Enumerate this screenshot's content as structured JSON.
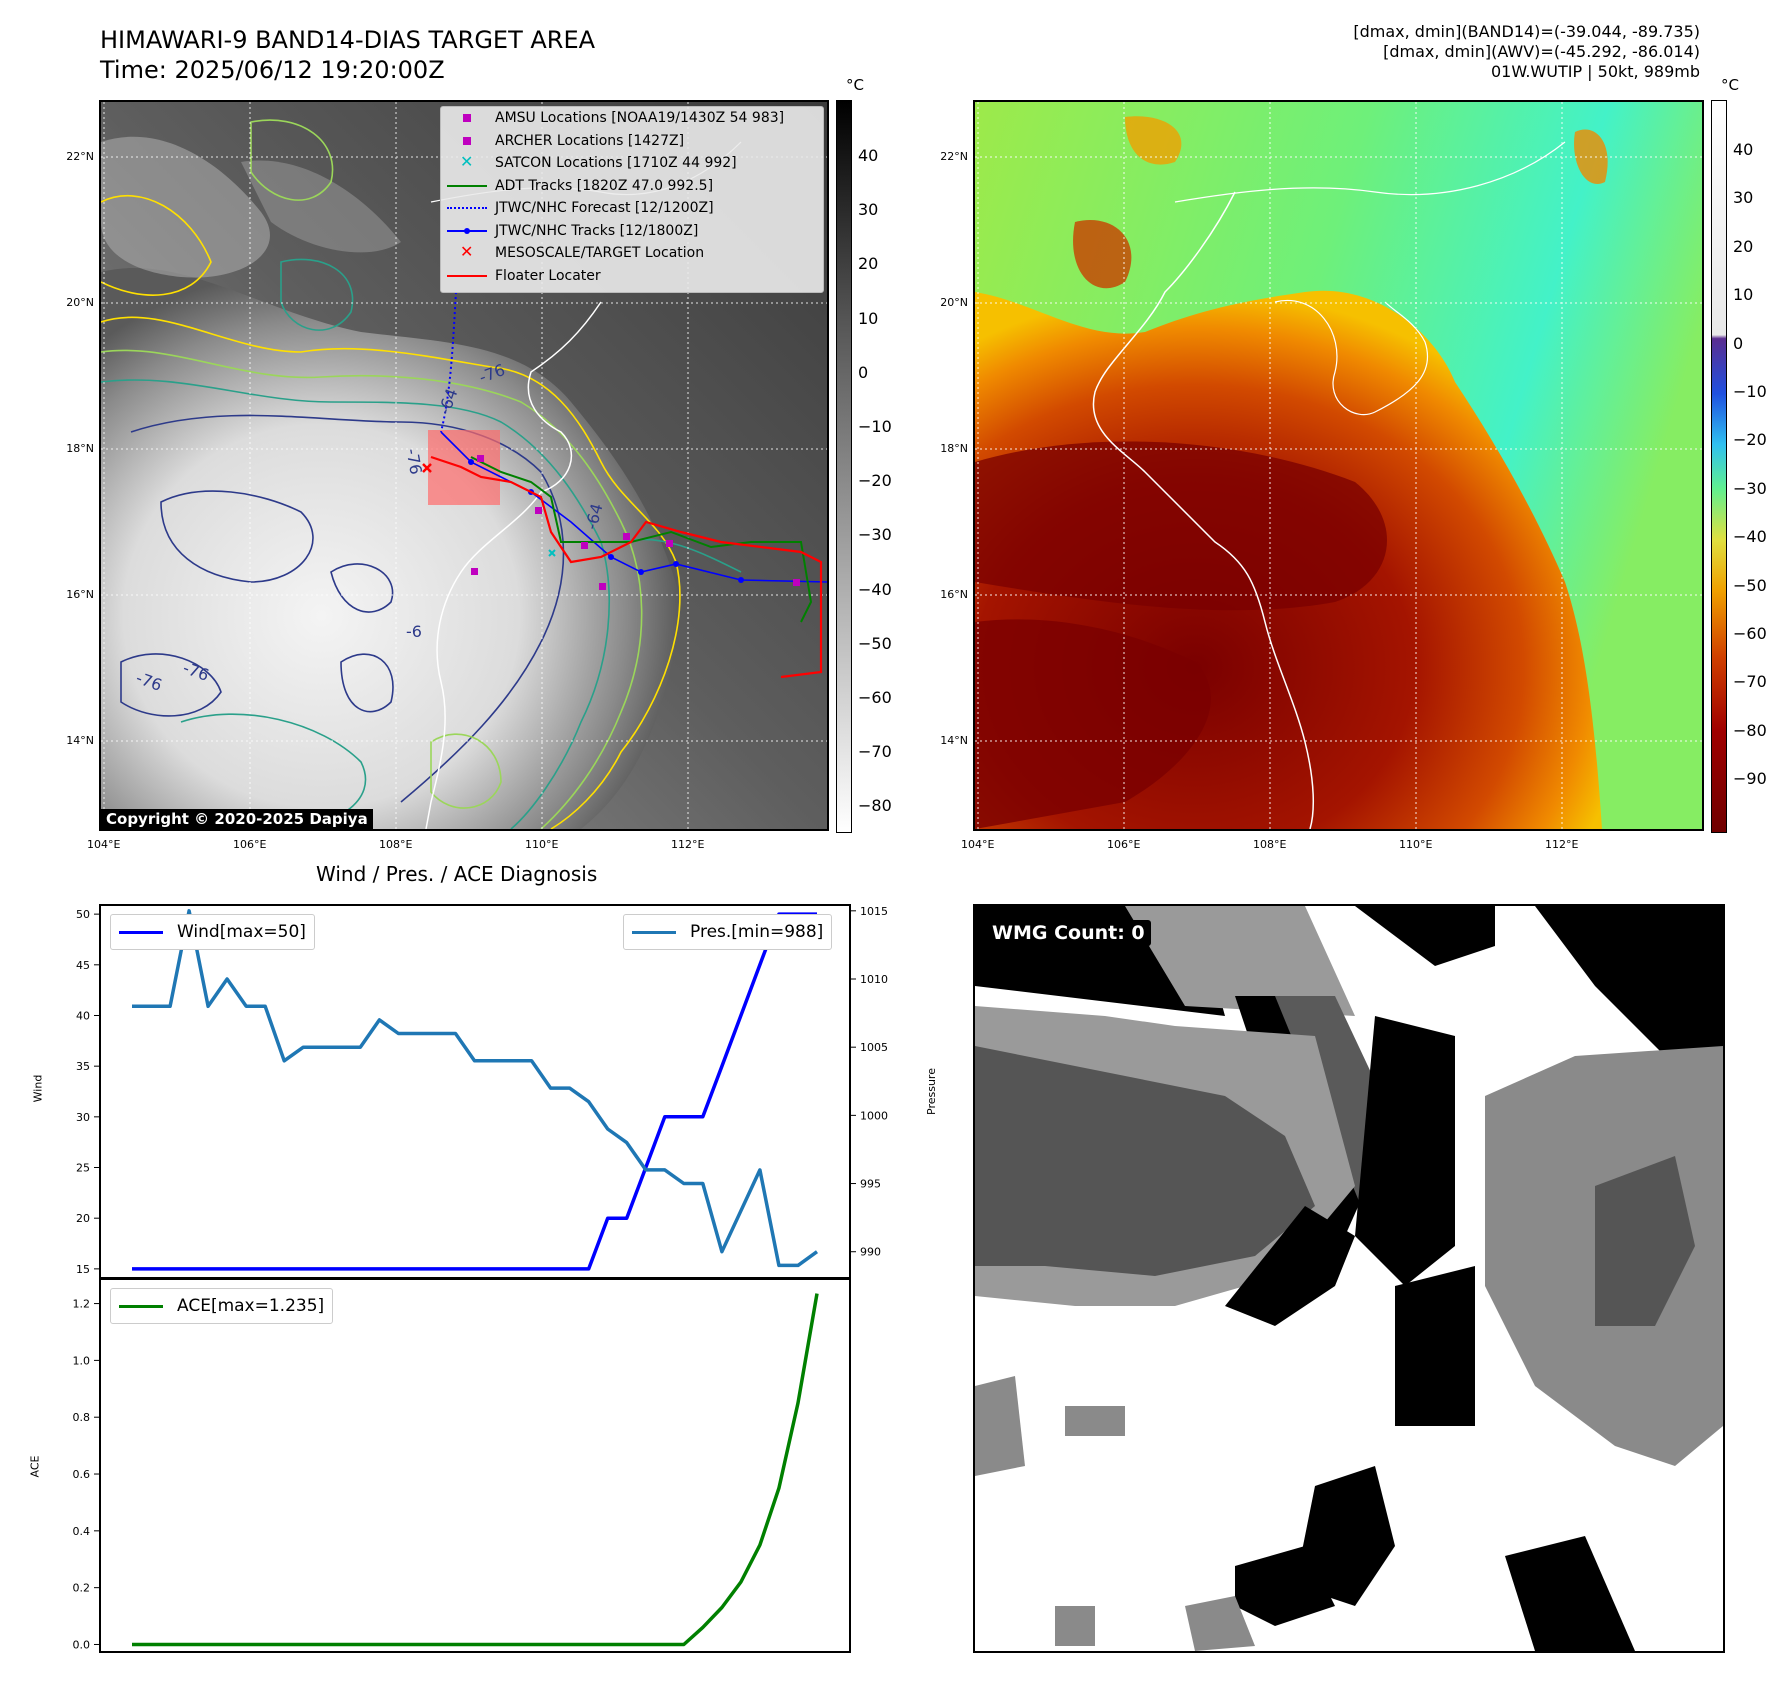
{
  "header": {
    "title": "HIMAWARI-9 BAND14-DIAS TARGET AREA",
    "time": "Time: 2025/06/12 19:20:00Z",
    "info_line1": "[dmax, dmin](BAND14)=(-39.044, -89.735)",
    "info_line2": "[dmax, dmin](AWV)=(-45.292, -86.014)",
    "info_line3": "01W.WUTIP | 50kt, 989mb"
  },
  "map_axes": {
    "lat_labels": [
      "22°N",
      "20°N",
      "18°N",
      "16°N",
      "14°N"
    ],
    "lon_labels": [
      "104°E",
      "106°E",
      "108°E",
      "110°E",
      "112°E"
    ]
  },
  "left_map": {
    "copyright": "Copyright © 2020-2025 Dapiya",
    "colorbar_unit": "°C",
    "colorbar_ticks": [
      "40",
      "30",
      "20",
      "10",
      "0",
      "−10",
      "−20",
      "−30",
      "−40",
      "−50",
      "−60",
      "−70",
      "−80"
    ],
    "contour_labels": [
      "-76",
      "-64",
      "-76",
      "-64",
      "-76",
      "-76",
      "-6"
    ],
    "legend": [
      {
        "label": "AMSU Locations [NOAA19/1430Z 54 983]",
        "symbol": "square",
        "color": "#bf00bf"
      },
      {
        "label": "ARCHER Locations [1427Z]",
        "symbol": "square",
        "color": "#bf00bf"
      },
      {
        "label": "SATCON Locations [1710Z 44 992]",
        "symbol": "x",
        "color": "#00bfbf"
      },
      {
        "label": "ADT Tracks [1820Z 47.0 992.5]",
        "symbol": "line",
        "color": "#008000"
      },
      {
        "label": "JTWC/NHC Forecast [12/1200Z]",
        "symbol": "dotted",
        "color": "#0000ff"
      },
      {
        "label": "JTWC/NHC Tracks [12/1800Z]",
        "symbol": "line-dot",
        "color": "#0000ff"
      },
      {
        "label": "MESOSCALE/TARGET Location",
        "symbol": "x",
        "color": "#ff0000"
      },
      {
        "label": "Floater Locater",
        "symbol": "line",
        "color": "#ff0000"
      }
    ]
  },
  "right_map": {
    "colorbar_unit": "°C",
    "colorbar_ticks": [
      "40",
      "30",
      "20",
      "10",
      "0",
      "−10",
      "−20",
      "−30",
      "−40",
      "−50",
      "−60",
      "−70",
      "−80",
      "−90"
    ]
  },
  "wmg_panel": {
    "label": "WMG Count: 0"
  },
  "chart_data": [
    {
      "type": "line",
      "title": "Wind / Pres. / ACE Diagnosis",
      "ylabel": "Wind",
      "y2label": "Pressure",
      "ylim": [
        14,
        51
      ],
      "y2lim": [
        988,
        1015.5
      ],
      "yticks": [
        "50",
        "45",
        "40",
        "35",
        "30",
        "25",
        "20",
        "15"
      ],
      "y2ticks": [
        "1015",
        "1010",
        "1005",
        "1000",
        "995",
        "990"
      ],
      "series": [
        {
          "name": "Wind[max=50]",
          "axis": "left",
          "color": "#0000ff",
          "values": [
            15,
            15,
            15,
            15,
            15,
            15,
            15,
            15,
            15,
            15,
            15,
            15,
            15,
            15,
            15,
            15,
            15,
            15,
            15,
            15,
            15,
            15,
            15,
            15,
            15,
            20,
            20,
            25,
            30,
            30,
            30,
            35,
            40,
            45,
            50,
            50,
            50
          ]
        },
        {
          "name": "Pres.[min=988]",
          "axis": "right",
          "color": "#1f77b4",
          "values": [
            1008,
            1008,
            1008,
            1015,
            1008,
            1010,
            1008,
            1008,
            1004,
            1005,
            1005,
            1005,
            1005,
            1007,
            1006,
            1006,
            1006,
            1006,
            1004,
            1004,
            1004,
            1004,
            1002,
            1002,
            1001,
            999,
            998,
            996,
            996,
            995,
            995,
            990,
            993,
            996,
            989,
            989,
            990
          ]
        }
      ]
    },
    {
      "type": "line",
      "ylabel": "ACE",
      "ylim": [
        -0.03,
        1.29
      ],
      "yticks": [
        "1.2",
        "1.0",
        "0.8",
        "0.6",
        "0.4",
        "0.2",
        "0.0"
      ],
      "series": [
        {
          "name": "ACE[max=1.235]",
          "color": "#008000",
          "values": [
            0,
            0,
            0,
            0,
            0,
            0,
            0,
            0,
            0,
            0,
            0,
            0,
            0,
            0,
            0,
            0,
            0,
            0,
            0,
            0,
            0,
            0,
            0,
            0,
            0,
            0,
            0,
            0,
            0,
            0,
            0.06,
            0.13,
            0.22,
            0.35,
            0.55,
            0.85,
            1.235
          ]
        }
      ]
    }
  ]
}
